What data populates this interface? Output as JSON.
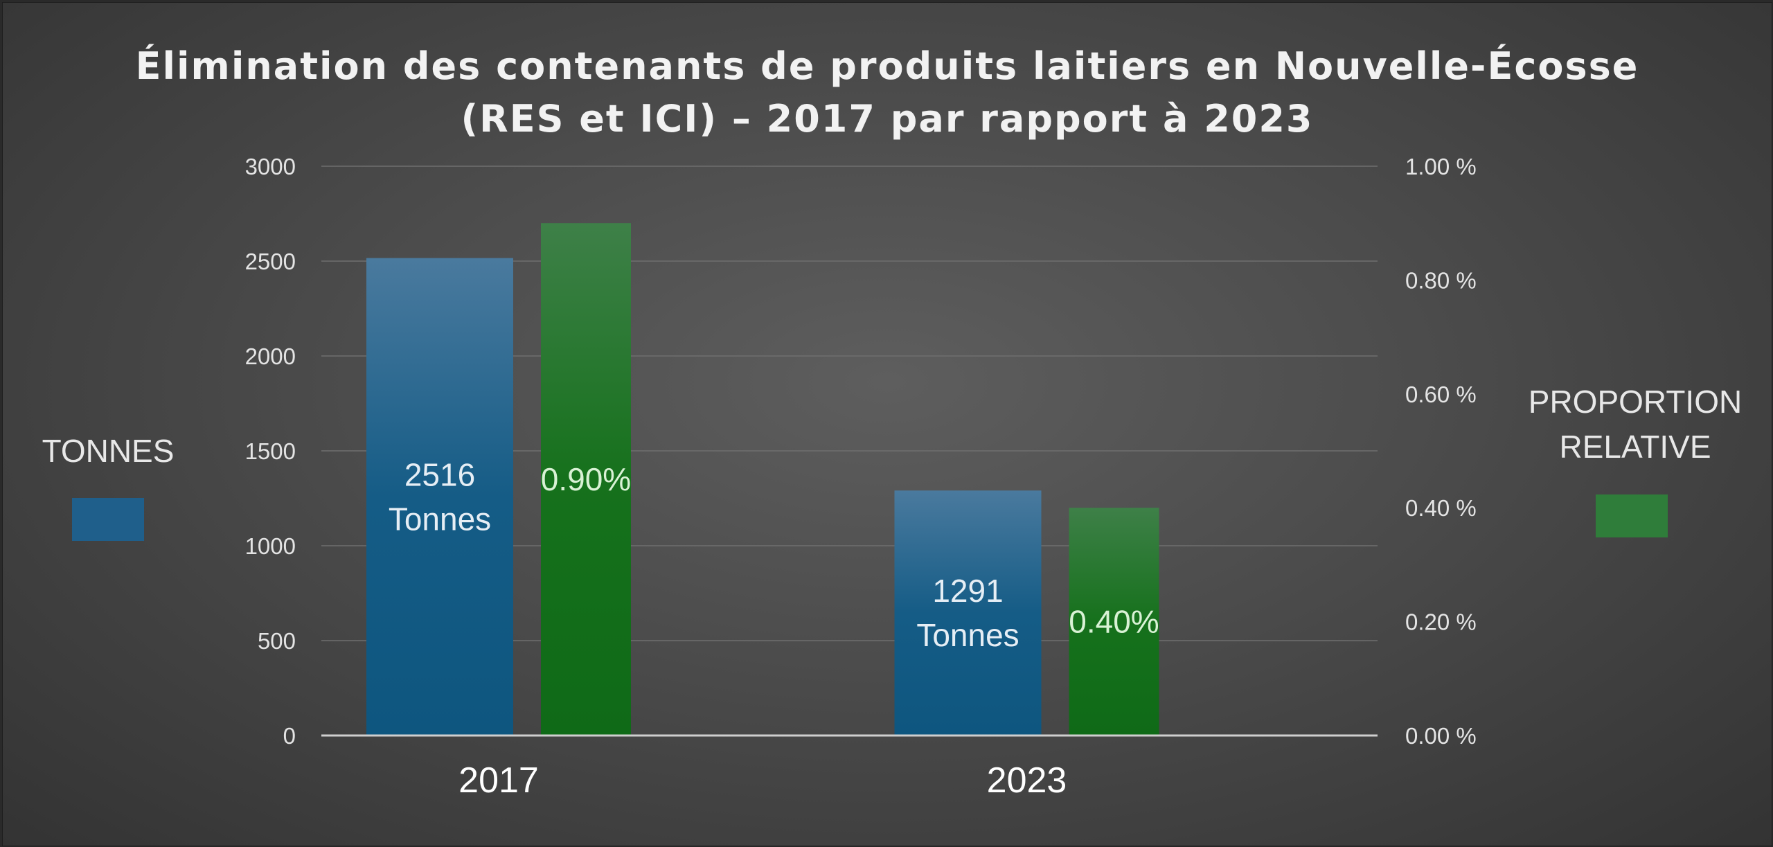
{
  "chart_data": {
    "type": "bar",
    "title_lines": [
      "Élimination des contenants de produits laitiers en Nouvelle-Écosse",
      "(RES et ICI) – 2017 par rapport à 2023"
    ],
    "categories": [
      "2017",
      "2023"
    ],
    "y_left": {
      "min": 0,
      "max": 3000,
      "ticks": [
        "0",
        "500",
        "1000",
        "1500",
        "2000",
        "2500",
        "3000"
      ]
    },
    "y_right": {
      "min": 0,
      "max": 1.0,
      "ticks": [
        "0.00 %",
        "0.20 %",
        "0.40 %",
        "0.60 %",
        "0.80 %",
        "1.00 %"
      ]
    },
    "grid": true,
    "series": [
      {
        "name": "TONNES",
        "axis": "left",
        "values": [
          2516,
          1291
        ],
        "labels": [
          [
            "2516",
            "Tonnes"
          ],
          [
            "1291",
            "Tonnes"
          ]
        ],
        "color": "#1f5f8b",
        "label_color": "#e6eef5"
      },
      {
        "name_lines": [
          "PROPORTION",
          "RELATIVE"
        ],
        "axis": "right",
        "values": [
          0.9,
          0.4
        ],
        "labels": [
          [
            "0.90%"
          ],
          [
            "0.40%"
          ]
        ],
        "color": "#1b7a22",
        "label_color": "#d9f2d5"
      }
    ]
  }
}
